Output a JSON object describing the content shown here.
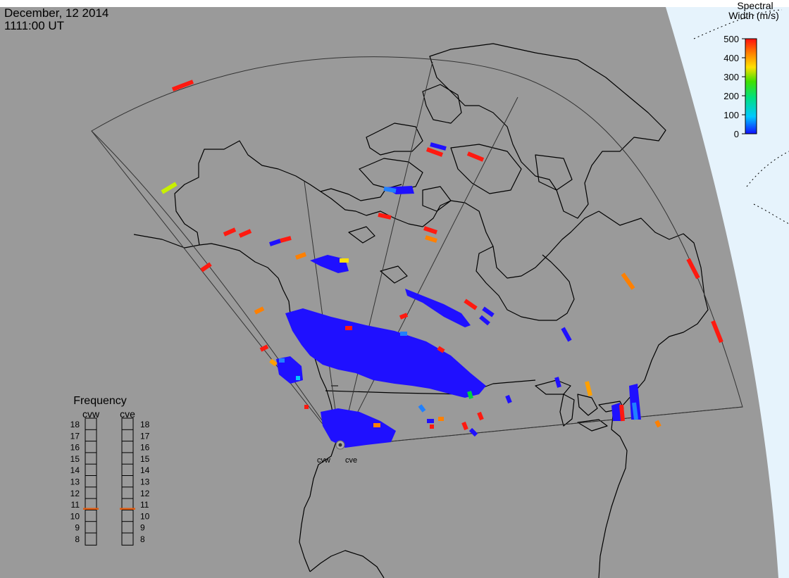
{
  "header": {
    "date": "December, 12 2014",
    "time": "1111:00 UT"
  },
  "colorbar": {
    "title_line1": "Spectral",
    "title_line2": "Width (m/s)",
    "ticks": [
      "500",
      "400",
      "300",
      "200",
      "100",
      "0"
    ]
  },
  "frequency_panel": {
    "title": "Frequency",
    "radars": [
      {
        "name": "cvw",
        "selected_mhz": 10.6
      },
      {
        "name": "cve",
        "selected_mhz": 10.6
      }
    ],
    "ticks": [
      "18",
      "17",
      "16",
      "15",
      "14",
      "13",
      "12",
      "11",
      "10",
      "9",
      "8"
    ]
  },
  "radar_sites": {
    "west_label": "cvw",
    "east_label": "cve"
  },
  "colors": {
    "background": "#9a9a9a",
    "ocean": "#e6f3fc",
    "scatter_low": "#1f10ff",
    "scatter_high": "#ff1a10",
    "freq_marker": "#e05a10"
  }
}
